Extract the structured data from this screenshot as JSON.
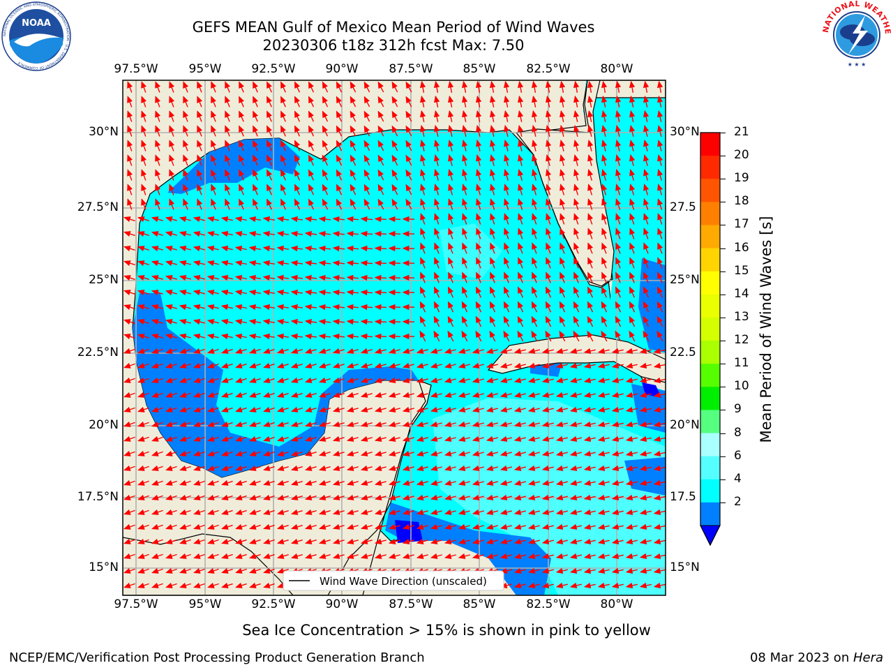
{
  "header": {
    "title_line1": "GEFS MEAN Gulf of Mexico Mean Period of Wind Waves",
    "title_line2": "20230306 t18z 312h fcst   Max: 7.50"
  },
  "logos": {
    "left": "NOAA",
    "left_ring_text": "NATIONAL OCEANIC AND ATMOSPHERIC ADMINISTRATION · U.S. DEPARTMENT OF COMMERCE",
    "right_ring_text": "NATIONAL WEATHER SERVICE"
  },
  "axes": {
    "lon_labels": [
      "97.5°W",
      "95°W",
      "92.5°W",
      "90°W",
      "87.5°W",
      "85°W",
      "82.5°W",
      "80°W"
    ],
    "lat_labels_left": [
      "30°N",
      "27.5°N",
      "25°N",
      "22.5°N",
      "20°N",
      "17.5°N",
      "15°N"
    ],
    "lat_labels_right": [
      "30°N",
      "27.5",
      "25°N",
      "22.5",
      "20°N",
      "17.5",
      "15°N"
    ]
  },
  "legend": {
    "label": "Wind Wave Direction (unscaled)"
  },
  "colorbar": {
    "label": "Mean Period of Wind Waves [s]",
    "ticks": [
      "21",
      "20",
      "19",
      "18",
      "17",
      "16",
      "15",
      "14",
      "13",
      "12",
      "11",
      "10",
      "9",
      "8",
      "6",
      "4",
      "2"
    ],
    "colors": [
      "#ff0000",
      "#ff2a00",
      "#ff5500",
      "#ff7f00",
      "#ffaa00",
      "#ffd400",
      "#ffff00",
      "#eaff00",
      "#d4ff00",
      "#aaff00",
      "#55ff00",
      "#00ee00",
      "#55ff80",
      "#aaffff",
      "#55ffff",
      "#00ffff",
      "#0080ff"
    ],
    "extend_color": "#0000ff"
  },
  "footer": {
    "note": "Sea Ice Concentration > 15% is shown in pink to yellow",
    "left": "NCEP/EMC/Verification Post Processing Product Generation Branch",
    "right_date": "08 Mar 2023 on ",
    "right_host": "Hera"
  }
}
